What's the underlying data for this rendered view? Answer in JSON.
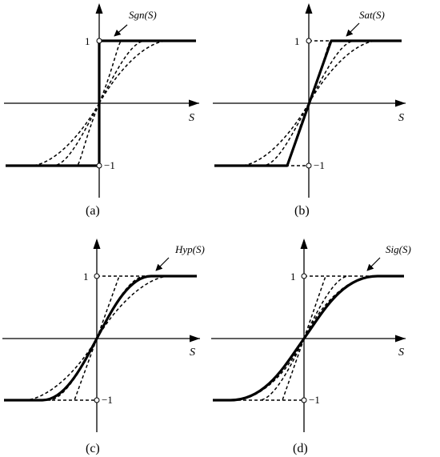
{
  "panels": [
    {
      "id": "a",
      "caption": "(a)",
      "function_label": "Sgn(S)",
      "axis_label": "S",
      "tick_pos": "1",
      "tick_neg": "−1"
    },
    {
      "id": "b",
      "caption": "(b)",
      "function_label": "Sat(S)",
      "axis_label": "S",
      "tick_pos": "1",
      "tick_neg": "−1"
    },
    {
      "id": "c",
      "caption": "(c)",
      "function_label": "Hyp(S)",
      "axis_label": "S",
      "tick_pos": "1",
      "tick_neg": "−1"
    },
    {
      "id": "d",
      "caption": "(d)",
      "function_label": "Sig(S)",
      "axis_label": "S",
      "tick_pos": "1",
      "tick_neg": "−1"
    }
  ]
}
